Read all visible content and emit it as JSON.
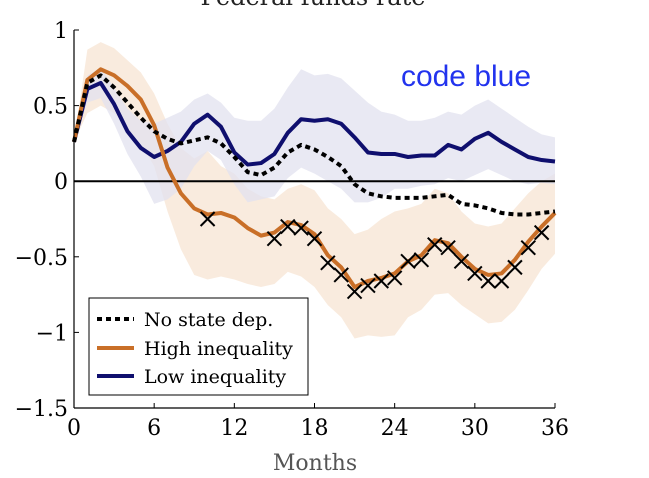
{
  "chart_data": {
    "type": "line",
    "title": "Federal funds rate",
    "xlabel": "Months",
    "ylabel": "",
    "xlim": [
      0,
      36
    ],
    "ylim": [
      -1.5,
      1
    ],
    "xticks": [
      0,
      6,
      12,
      18,
      24,
      30,
      36
    ],
    "yticks": [
      -1.5,
      -1,
      -0.5,
      0,
      0.5,
      1
    ],
    "xtick_labels": [
      "0",
      "6",
      "12",
      "18",
      "24",
      "30",
      "36"
    ],
    "ytick_labels": [
      "−1.5",
      "−1",
      "−0.5",
      "0",
      "0.5",
      "1"
    ],
    "grid": false,
    "legend_position": "bottom-left",
    "annotation": "code blue",
    "colors": {
      "no_state": "#000000",
      "high": "#c96f28",
      "high_band": "#f8e8d8",
      "low": "#0f0f6e",
      "low_band": "#e1e1ef",
      "annotation": "#2233ee"
    },
    "x": [
      0,
      1,
      2,
      3,
      4,
      5,
      6,
      7,
      8,
      9,
      10,
      11,
      12,
      13,
      14,
      15,
      16,
      17,
      18,
      19,
      20,
      21,
      22,
      23,
      24,
      25,
      26,
      27,
      28,
      29,
      30,
      31,
      32,
      33,
      34,
      35,
      36
    ],
    "series": [
      {
        "name": "No state dep.",
        "style": "dotted",
        "values": [
          0.26,
          0.65,
          0.7,
          0.62,
          0.52,
          0.42,
          0.33,
          0.28,
          0.25,
          0.27,
          0.29,
          0.25,
          0.16,
          0.06,
          0.04,
          0.09,
          0.19,
          0.24,
          0.21,
          0.16,
          0.1,
          -0.02,
          -0.08,
          -0.1,
          -0.11,
          -0.11,
          -0.11,
          -0.1,
          -0.09,
          -0.15,
          -0.16,
          -0.18,
          -0.21,
          -0.22,
          -0.22,
          -0.21,
          -0.2
        ]
      },
      {
        "name": "High inequality",
        "style": "solid",
        "values": [
          0.26,
          0.67,
          0.74,
          0.7,
          0.63,
          0.54,
          0.37,
          0.09,
          -0.08,
          -0.18,
          -0.22,
          -0.21,
          -0.24,
          -0.31,
          -0.36,
          -0.34,
          -0.27,
          -0.29,
          -0.35,
          -0.49,
          -0.57,
          -0.7,
          -0.66,
          -0.64,
          -0.61,
          -0.53,
          -0.49,
          -0.39,
          -0.41,
          -0.5,
          -0.58,
          -0.62,
          -0.61,
          -0.52,
          -0.4,
          -0.3,
          -0.21
        ]
      },
      {
        "name": "Low inequality",
        "style": "solid",
        "values": [
          0.26,
          0.61,
          0.65,
          0.51,
          0.33,
          0.22,
          0.16,
          0.2,
          0.26,
          0.38,
          0.44,
          0.36,
          0.19,
          0.11,
          0.12,
          0.18,
          0.32,
          0.41,
          0.4,
          0.41,
          0.38,
          0.29,
          0.19,
          0.18,
          0.18,
          0.16,
          0.17,
          0.17,
          0.24,
          0.21,
          0.28,
          0.32,
          0.26,
          0.21,
          0.16,
          0.14,
          0.13
        ]
      }
    ],
    "bands": [
      {
        "series": "High inequality",
        "upper": [
          0.26,
          0.87,
          0.92,
          0.88,
          0.8,
          0.72,
          0.58,
          0.38,
          0.22,
          0.15,
          0.2,
          0.1,
          0.05,
          -0.05,
          -0.1,
          -0.12,
          -0.05,
          -0.02,
          -0.06,
          -0.18,
          -0.25,
          -0.35,
          -0.32,
          -0.25,
          -0.2,
          -0.18,
          -0.15,
          -0.05,
          -0.08,
          -0.2,
          -0.28,
          -0.3,
          -0.28,
          -0.18,
          -0.08,
          0.0,
          0.05
        ],
        "lower": [
          0.26,
          0.45,
          0.5,
          0.45,
          0.35,
          0.25,
          0.1,
          -0.2,
          -0.45,
          -0.62,
          -0.65,
          -0.63,
          -0.65,
          -0.68,
          -0.7,
          -0.68,
          -0.6,
          -0.63,
          -0.7,
          -0.82,
          -0.9,
          -1.04,
          -1.02,
          -1.03,
          -1.02,
          -0.9,
          -0.85,
          -0.75,
          -0.74,
          -0.82,
          -0.88,
          -0.94,
          -0.93,
          -0.85,
          -0.72,
          -0.58,
          -0.48
        ]
      },
      {
        "series": "Low inequality",
        "upper": [
          0.26,
          0.7,
          0.75,
          0.62,
          0.48,
          0.4,
          0.38,
          0.42,
          0.46,
          0.54,
          0.58,
          0.52,
          0.42,
          0.4,
          0.4,
          0.48,
          0.62,
          0.74,
          0.7,
          0.71,
          0.68,
          0.6,
          0.52,
          0.46,
          0.44,
          0.4,
          0.4,
          0.42,
          0.46,
          0.44,
          0.5,
          0.54,
          0.48,
          0.42,
          0.36,
          0.31,
          0.29
        ],
        "lower": [
          0.26,
          0.52,
          0.55,
          0.38,
          0.18,
          0.03,
          -0.15,
          -0.12,
          -0.05,
          0.1,
          0.2,
          0.14,
          -0.02,
          -0.14,
          -0.12,
          -0.1,
          0.02,
          0.09,
          0.05,
          0.0,
          -0.05,
          -0.14,
          -0.14,
          -0.11,
          -0.05,
          -0.05,
          -0.03,
          -0.02,
          0.02,
          0.0,
          0.04,
          0.08,
          0.04,
          0.0,
          -0.02,
          -0.01,
          -0.02
        ]
      }
    ],
    "markers": {
      "series": "High inequality",
      "symbol": "x",
      "x": [
        10,
        15,
        16,
        17,
        18,
        19,
        20,
        21,
        22,
        23,
        24,
        25,
        26,
        27,
        28,
        29,
        30,
        31,
        32,
        33,
        34,
        35
      ],
      "y": [
        -0.25,
        -0.38,
        -0.3,
        -0.31,
        -0.38,
        -0.54,
        -0.62,
        -0.73,
        -0.69,
        -0.66,
        -0.64,
        -0.53,
        -0.52,
        -0.42,
        -0.44,
        -0.53,
        -0.61,
        -0.66,
        -0.66,
        -0.57,
        -0.44,
        -0.34
      ]
    }
  }
}
